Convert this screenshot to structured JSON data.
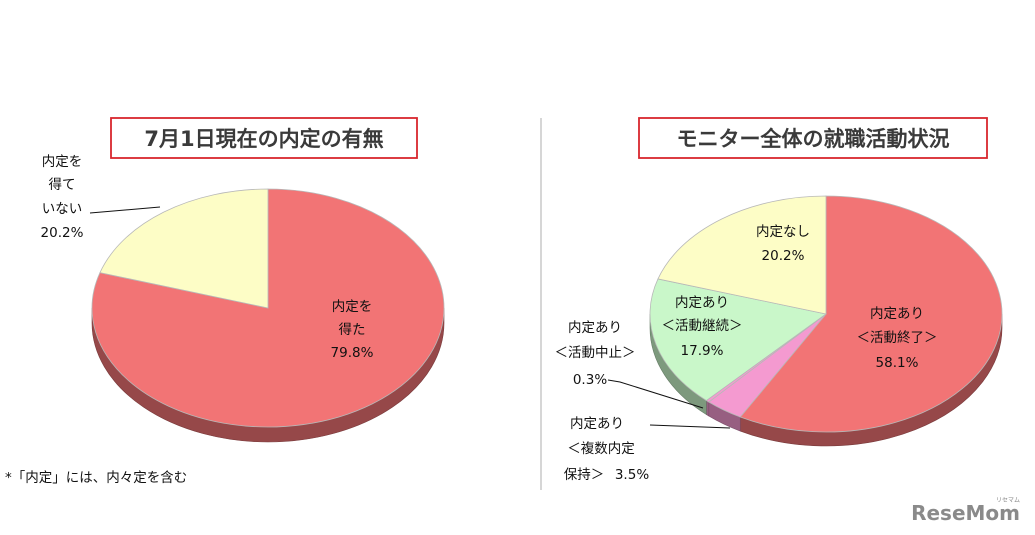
{
  "chart_data": [
    {
      "type": "pie",
      "title": "7月1日現在の内定の有無",
      "slices": [
        {
          "name": "内定を得た",
          "label_lines": [
            "内定を",
            "得た"
          ],
          "value": 79.8,
          "value_label": "79.8%",
          "color": "#f27475"
        },
        {
          "name": "内定を得ていない",
          "label_lines": [
            "内定を",
            "得て",
            "いない"
          ],
          "value": 20.2,
          "value_label": "20.2%",
          "color": "#fdfdc6"
        }
      ]
    },
    {
      "type": "pie",
      "title": "モニター全体の就職活動状況",
      "slices": [
        {
          "name": "内定あり＜活動終了＞",
          "label_lines": [
            "内定あり",
            "＜活動終了＞"
          ],
          "value": 58.1,
          "value_label": "58.1%",
          "color": "#f27475"
        },
        {
          "name": "内定あり＜複数内定保持＞",
          "label_lines": [
            "内定あり",
            "＜複数内定",
            "保持＞"
          ],
          "value": 3.5,
          "value_label": "3.5%",
          "color": "#f49ad0"
        },
        {
          "name": "内定あり＜活動中止＞",
          "label_lines": [
            "内定あり",
            "＜活動中止＞"
          ],
          "value": 0.3,
          "value_label": "0.3%",
          "color": "#f49ad0"
        },
        {
          "name": "内定あり＜活動継続＞",
          "label_lines": [
            "内定あり",
            "＜活動継続＞"
          ],
          "value": 17.9,
          "value_label": "17.9%",
          "color": "#c9f7c9"
        },
        {
          "name": "内定なし",
          "label_lines": [
            "内定なし"
          ],
          "value": 20.2,
          "value_label": "20.2%",
          "color": "#fdfdc6"
        }
      ]
    }
  ],
  "footnote": "*「内定」には、内々定を含む",
  "brand": {
    "name": "ReseMom",
    "superscript": "リセマム"
  },
  "colors": {
    "title_border": "#d9262d",
    "divider": "#c8c8c8"
  }
}
